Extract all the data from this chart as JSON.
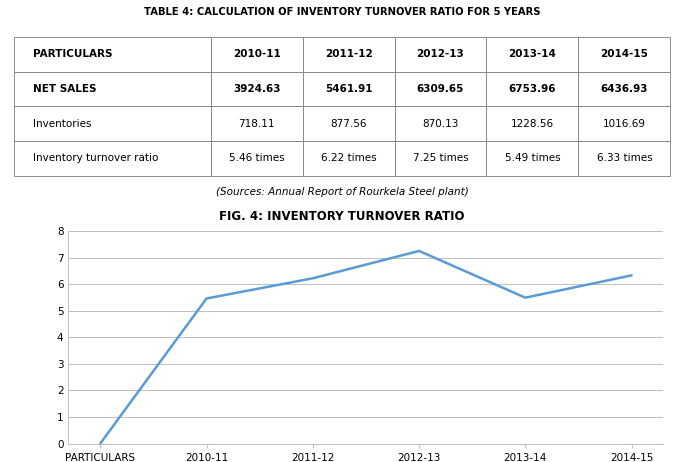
{
  "table_title": "TABLE 4: CALCULATION OF INVENTORY TURNOVER RATIO FOR 5 YEARS",
  "source_note": "(Sources: Annual Report of Rourkela Steel plant)",
  "chart_title": "FIG. 4: INVENTORY TURNOVER RATIO",
  "columns": [
    "PARTICULARS",
    "2010-11",
    "2011-12",
    "2012-13",
    "2013-14",
    "2014-15"
  ],
  "rows": [
    {
      "label": "NET SALES",
      "bold": true,
      "values": [
        "3924.63",
        "5461.91",
        "6309.65",
        "6753.96",
        "6436.93"
      ]
    },
    {
      "label": "Inventories",
      "bold": false,
      "values": [
        "718.11",
        "877.56",
        "870.13",
        "1228.56",
        "1016.69"
      ]
    },
    {
      "label": "Inventory turnover ratio",
      "bold": false,
      "values": [
        "5.46 times",
        "6.22 times",
        "7.25 times",
        "5.49 times",
        "6.33 times"
      ]
    }
  ],
  "x_labels": [
    "PARTICULARS",
    "2010-11",
    "2011-12",
    "2012-13",
    "2013-14",
    "2014-15"
  ],
  "y_values": [
    0,
    5.46,
    6.22,
    7.25,
    5.49,
    6.33
  ],
  "ylim": [
    0,
    8
  ],
  "yticks": [
    0,
    1,
    2,
    3,
    4,
    5,
    6,
    7,
    8
  ],
  "line_color": "#5B9BD5",
  "line_width": 1.8,
  "grid_color": "#C0C0C0",
  "bg_color": "#FFFFFF",
  "table_border_color": "#7F7F7F",
  "col_widths": [
    0.3,
    0.14,
    0.14,
    0.14,
    0.14,
    0.14
  ]
}
